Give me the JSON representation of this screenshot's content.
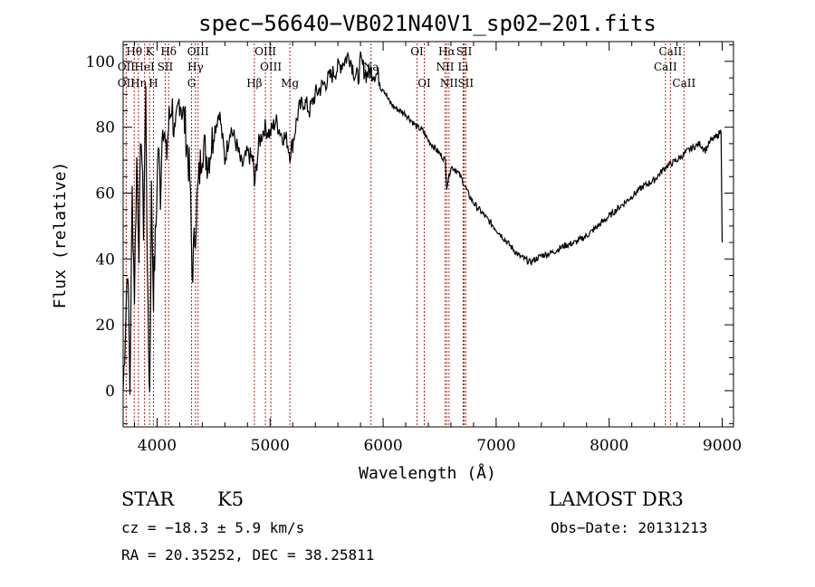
{
  "chart_data": {
    "type": "line",
    "title": "spec−56640−VB021N40V1_sp02−201.fits",
    "xlabel": "Wavelength (Å)",
    "ylabel": "Flux (relative)",
    "xlim": [
      3700,
      9100
    ],
    "ylim": [
      -11,
      106
    ],
    "xticks": [
      4000,
      5000,
      6000,
      7000,
      8000,
      9000
    ],
    "yticks": [
      0,
      20,
      40,
      60,
      80,
      100
    ],
    "series": [
      {
        "name": "flux",
        "x": [
          3700,
          3720,
          3740,
          3760,
          3780,
          3800,
          3820,
          3840,
          3860,
          3880,
          3900,
          3920,
          3935,
          3950,
          3968,
          3990,
          4010,
          4030,
          4050,
          4080,
          4101,
          4130,
          4160,
          4200,
          4250,
          4290,
          4310,
          4340,
          4360,
          4400,
          4450,
          4500,
          4550,
          4600,
          4650,
          4700,
          4750,
          4800,
          4850,
          4861,
          4900,
          4950,
          5000,
          5050,
          5100,
          5150,
          5175,
          5200,
          5250,
          5300,
          5350,
          5400,
          5450,
          5500,
          5550,
          5600,
          5650,
          5700,
          5750,
          5780,
          5800,
          5850,
          5890,
          5950,
          6000,
          6050,
          6100,
          6150,
          6200,
          6250,
          6300,
          6350,
          6400,
          6450,
          6500,
          6550,
          6563,
          6600,
          6650,
          6700,
          6750,
          6800,
          6900,
          7000,
          7100,
          7200,
          7300,
          7350,
          7400,
          7500,
          7600,
          7700,
          7800,
          7900,
          8000,
          8100,
          8200,
          8300,
          8400,
          8500,
          8600,
          8700,
          8800,
          8850,
          8900,
          8950,
          8990,
          9000
        ],
        "y": [
          0,
          20,
          40,
          0,
          60,
          30,
          70,
          45,
          80,
          50,
          90,
          20,
          -1,
          60,
          30,
          50,
          75,
          60,
          85,
          70,
          80,
          88,
          75,
          90,
          80,
          65,
          35,
          50,
          60,
          75,
          70,
          78,
          85,
          70,
          80,
          75,
          68,
          72,
          70,
          62,
          75,
          80,
          78,
          82,
          78,
          76,
          72,
          75,
          85,
          88,
          85,
          90,
          92,
          94,
          96,
          98,
          100,
          102,
          96,
          95,
          100,
          96,
          97,
          96,
          92,
          88,
          86,
          85,
          84,
          82,
          80,
          79,
          76,
          74,
          72,
          70,
          62,
          68,
          67,
          64,
          60,
          57,
          53,
          49,
          45,
          41,
          39,
          40,
          41,
          42,
          44,
          45,
          47,
          50,
          53,
          56,
          59,
          62,
          64,
          68,
          70,
          73,
          75,
          73,
          76,
          77,
          79,
          45
        ]
      }
    ],
    "spectral_lines": [
      {
        "label": "Hθ",
        "wavelength": 3798,
        "row": 0
      },
      {
        "label": "OII",
        "wavelength": 3727,
        "row": 1
      },
      {
        "label": "OII",
        "wavelength": 3727,
        "row": 2
      },
      {
        "label": "K",
        "wavelength": 3934,
        "row": 0
      },
      {
        "label": "HeI",
        "wavelength": 3889,
        "row": 1
      },
      {
        "label": "Hη",
        "wavelength": 3835,
        "row": 2
      },
      {
        "label": "Hδ",
        "wavelength": 4102,
        "row": 0
      },
      {
        "label": "SII",
        "wavelength": 4072,
        "row": 1
      },
      {
        "label": "H",
        "wavelength": 3968,
        "row": 2
      },
      {
        "label": "OIII",
        "wavelength": 4363,
        "row": 0
      },
      {
        "label": "Hγ",
        "wavelength": 4340,
        "row": 1
      },
      {
        "label": "G",
        "wavelength": 4305,
        "row": 2
      },
      {
        "label": "OIII",
        "wavelength": 4959,
        "row": 0
      },
      {
        "label": "OIII",
        "wavelength": 5007,
        "row": 1
      },
      {
        "label": "Hβ",
        "wavelength": 4861,
        "row": 2
      },
      {
        "label": "Mg",
        "wavelength": 5175,
        "row": 2
      },
      {
        "label": "Na",
        "wavelength": 5893,
        "row": 1
      },
      {
        "label": "OI",
        "wavelength": 6300,
        "row": 0
      },
      {
        "label": "OI",
        "wavelength": 6364,
        "row": 2
      },
      {
        "label": "Hα",
        "wavelength": 6563,
        "row": 0
      },
      {
        "label": "NII",
        "wavelength": 6548,
        "row": 1
      },
      {
        "label": "NII",
        "wavelength": 6583,
        "row": 2
      },
      {
        "label": "SII",
        "wavelength": 6717,
        "row": 0
      },
      {
        "label": "Li",
        "wavelength": 6708,
        "row": 1
      },
      {
        "label": "SII",
        "wavelength": 6731,
        "row": 2
      },
      {
        "label": "CaII",
        "wavelength": 8542,
        "row": 0
      },
      {
        "label": "CaII",
        "wavelength": 8498,
        "row": 1
      },
      {
        "label": "CaII",
        "wavelength": 8662,
        "row": 2
      }
    ],
    "line_marker_color": "#b22222"
  },
  "info": {
    "object_class": "STAR",
    "subclass": "K5",
    "survey": "LAMOST DR3",
    "cz_text": "cz = −18.3 ± 5.9 km/s",
    "obs_date": "Obs−Date: 20131213",
    "coords": "RA =  20.35252, DEC =  38.25811"
  }
}
